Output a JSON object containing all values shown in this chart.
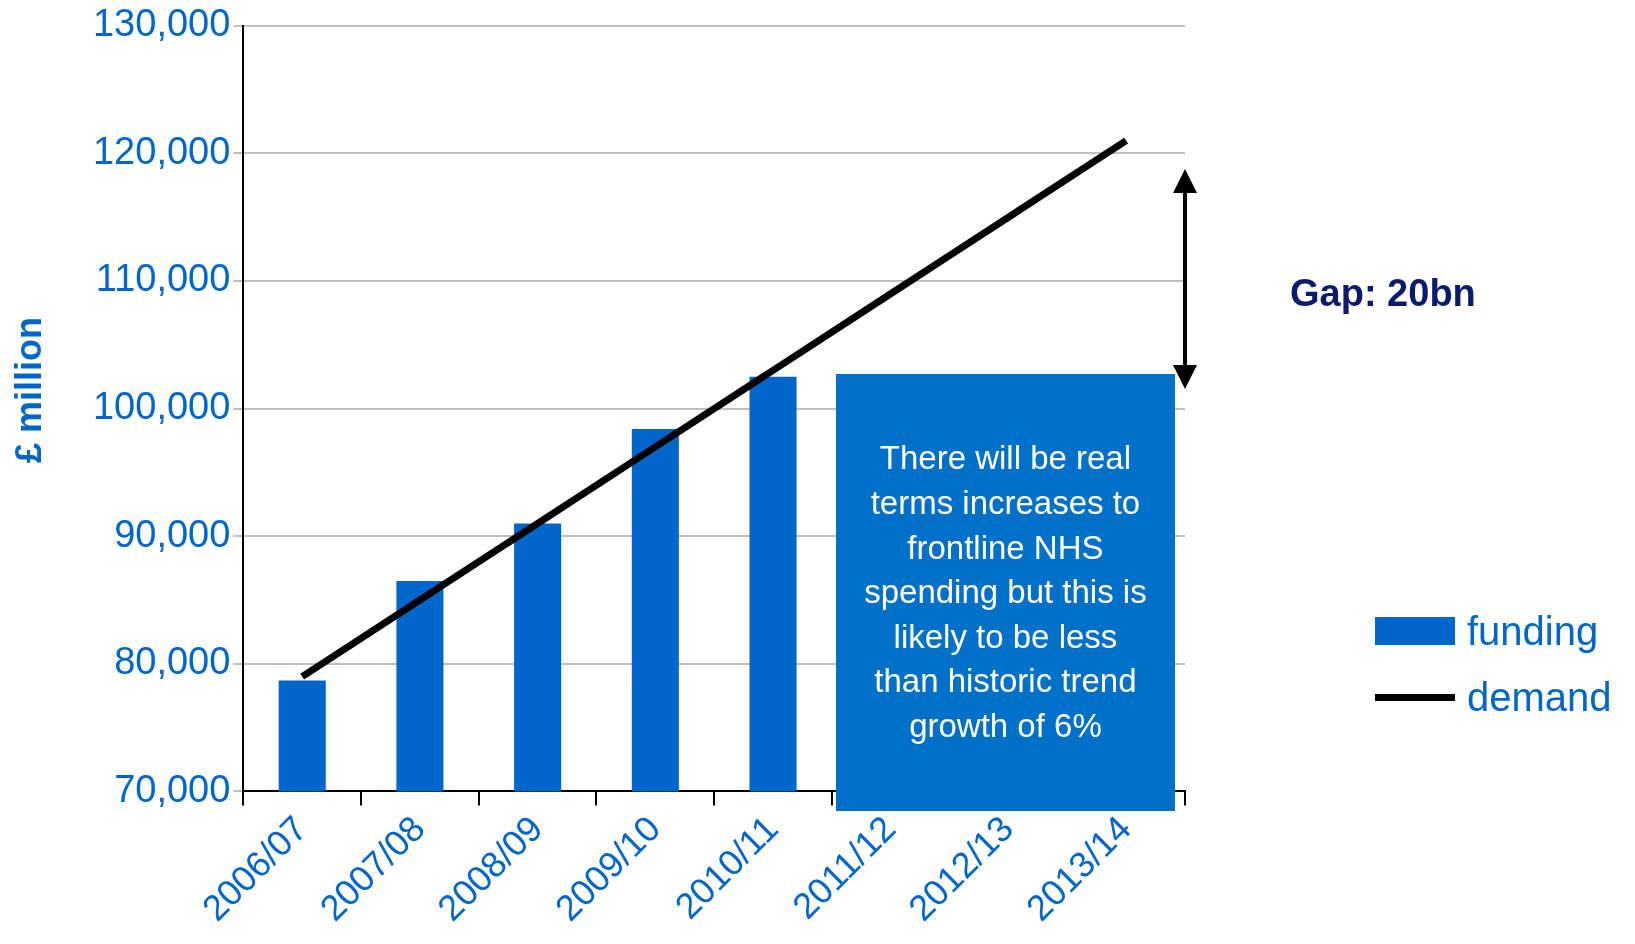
{
  "chart_data": {
    "type": "bar",
    "ylabel": "£ million",
    "categories": [
      "2006/07",
      "2007/08",
      "2008/09",
      "2009/10",
      "2010/11",
      "2011/12",
      "2012/13",
      "2013/14"
    ],
    "series": [
      {
        "name": "funding",
        "color": "#0066cc",
        "values": [
          78700,
          86500,
          91000,
          98400,
          102500,
          null,
          null,
          null
        ]
      },
      {
        "name": "demand",
        "type": "line",
        "color": "#000000",
        "values": [
          79000,
          85000,
          91000,
          97000,
          103000,
          109000,
          115000,
          121000
        ]
      }
    ],
    "ylim": [
      70000,
      130000
    ],
    "yticks": [
      {
        "value": 70000,
        "label": "70,000"
      },
      {
        "value": 80000,
        "label": "80,000"
      },
      {
        "value": 90000,
        "label": "90,000"
      },
      {
        "value": 100000,
        "label": "100,000"
      },
      {
        "value": 110000,
        "label": "110,000"
      },
      {
        "value": 120000,
        "label": "120,000"
      },
      {
        "value": 130000,
        "label": "130,000"
      }
    ],
    "grid": "y",
    "legend": "right",
    "marker": "none",
    "annotations": [
      "Gap: 20bn",
      "There will be real terms increases to frontline NHS spending but this is likely to be less than historic trend growth of 6%"
    ]
  }
}
